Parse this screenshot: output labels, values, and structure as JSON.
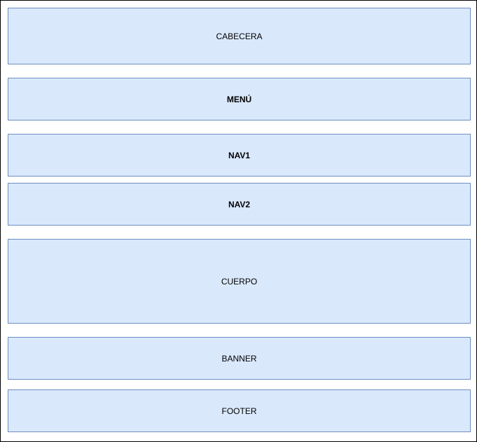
{
  "diagram": {
    "blocks": {
      "cabecera": "CABECERA",
      "menu": "MENÚ",
      "nav1": "NAV1",
      "nav2": "NAV2",
      "cuerpo": "CUERPO",
      "banner": "BANNER",
      "footer": "FOOTER"
    },
    "colors": {
      "fill": "#dae8fc",
      "stroke": "#6c8ebf",
      "frame": "#000000"
    }
  }
}
